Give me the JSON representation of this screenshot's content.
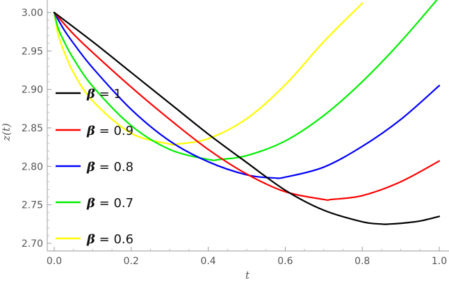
{
  "chart_data": {
    "type": "line",
    "xlabel": "t",
    "ylabel": "z(t)",
    "xlim": [
      -0.02,
      1.0
    ],
    "ylim": [
      2.69,
      3.01
    ],
    "xticks": [
      "0.0",
      "0.2",
      "0.4",
      "0.6",
      "0.8",
      "1.0"
    ],
    "xtick_values": [
      0.0,
      0.2,
      0.4,
      0.6,
      0.8,
      1.0
    ],
    "yticks": [
      "2.70",
      "2.75",
      "2.80",
      "2.85",
      "2.90",
      "2.95",
      "3.00"
    ],
    "ytick_values": [
      2.7,
      2.75,
      2.8,
      2.85,
      2.9,
      2.95,
      3.0
    ],
    "grid": false,
    "legend_position": "left",
    "series": [
      {
        "name": "β = 1",
        "legend_symbol": "β",
        "legend_value": " = 1",
        "color": "#000000",
        "x": [
          0,
          0.1,
          0.2,
          0.3,
          0.4,
          0.5,
          0.6,
          0.7,
          0.8,
          0.85,
          0.87,
          0.9,
          0.95,
          1.0
        ],
        "y": [
          3.0,
          2.962,
          2.922,
          2.882,
          2.842,
          2.805,
          2.769,
          2.743,
          2.728,
          2.725,
          2.725,
          2.726,
          2.729,
          2.735
        ]
      },
      {
        "name": "β = 0.9",
        "legend_symbol": "β",
        "legend_value": " = 0.9",
        "color": "#ff0000",
        "x": [
          0,
          0.05,
          0.1,
          0.2,
          0.3,
          0.4,
          0.5,
          0.6,
          0.7,
          0.72,
          0.8,
          0.9,
          1.0
        ],
        "y": [
          3.0,
          2.972,
          2.948,
          2.903,
          2.861,
          2.822,
          2.79,
          2.767,
          2.757,
          2.757,
          2.762,
          2.78,
          2.807
        ]
      },
      {
        "name": "β = 0.8",
        "legend_symbol": "β",
        "legend_value": " = 0.8",
        "color": "#0000ff",
        "x": [
          0,
          0.025,
          0.05,
          0.1,
          0.2,
          0.3,
          0.4,
          0.5,
          0.57,
          0.6,
          0.7,
          0.8,
          0.9,
          1.0
        ],
        "y": [
          3.0,
          2.978,
          2.96,
          2.928,
          2.874,
          2.833,
          2.806,
          2.789,
          2.785,
          2.786,
          2.799,
          2.826,
          2.861,
          2.905
        ]
      },
      {
        "name": "β = 0.7",
        "legend_symbol": "β",
        "legend_value": " = 0.7",
        "color": "#00ee00",
        "x": [
          0,
          0.01,
          0.025,
          0.05,
          0.1,
          0.2,
          0.3,
          0.4,
          0.43,
          0.5,
          0.6,
          0.7,
          0.8,
          0.9,
          1.0
        ],
        "y": [
          3.0,
          2.98,
          2.963,
          2.94,
          2.904,
          2.853,
          2.822,
          2.809,
          2.809,
          2.814,
          2.833,
          2.866,
          2.91,
          2.962,
          3.02
        ]
      },
      {
        "name": "β = 0.6",
        "legend_symbol": "β",
        "legend_value": " = 0.6",
        "color": "#ffff00",
        "x": [
          0,
          0.01,
          0.025,
          0.05,
          0.1,
          0.2,
          0.3,
          0.32,
          0.4,
          0.5,
          0.6,
          0.7,
          0.8
        ],
        "y": [
          3.0,
          2.972,
          2.95,
          2.922,
          2.885,
          2.843,
          2.829,
          2.829,
          2.836,
          2.862,
          2.906,
          2.962,
          3.012
        ]
      }
    ]
  }
}
